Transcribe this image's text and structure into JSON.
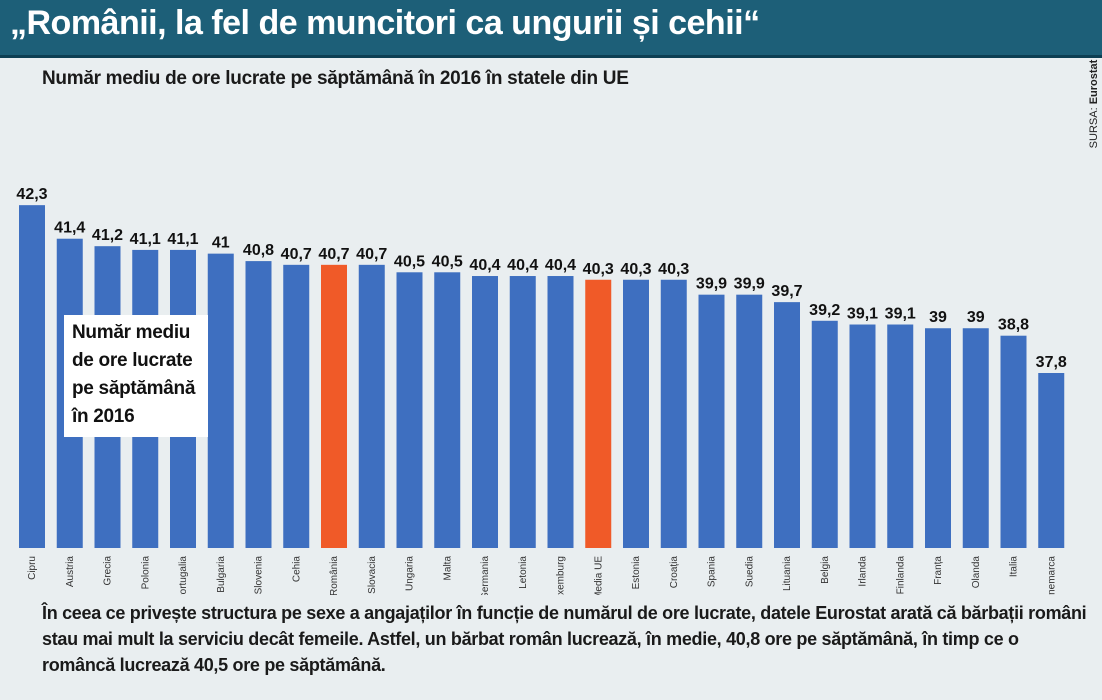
{
  "header": {
    "title": "„Românii, la fel de muncitori ca ungurii și cehii“"
  },
  "subtitle": "Număr mediu de ore lucrate pe săptămână în 2016 în statele din UE",
  "source": {
    "label": "SURSA:",
    "name": "Eurostat"
  },
  "legend_box": {
    "text": "Număr mediu de ore lucrate pe săptămână în 2016"
  },
  "footer": {
    "text": "În ceea ce privește structura pe sexe a angajaților în funcție de numărul de ore lucrate, datele Eurostat arată că bărbații români stau mai mult la serviciu decât femeile. Astfel, un bărbat român lucrează, în medie, 40,8 ore pe săptămână, în timp ce o româncă lucrează 40,5 ore pe săptămână."
  },
  "colors": {
    "bar": "#3e6fc0",
    "highlight": "#f05a28",
    "header_bg": "#1d5f78"
  },
  "chart_data": {
    "type": "bar",
    "title": "Număr mediu de ore lucrate pe săptămână în 2016 în statele din UE",
    "categories": [
      "Cipru",
      "Austria",
      "Grecia",
      "Polonia",
      "Portugalia",
      "Bulgaria",
      "Slovenia",
      "Cehia",
      "România",
      "Slovacia",
      "Ungaria",
      "Malta",
      "Germania",
      "Letonia",
      "Luxemburg",
      "Media UE",
      "Estonia",
      "Croația",
      "Spania",
      "Suedia",
      "Lituania",
      "Belgia",
      "Irlanda",
      "Finlanda",
      "Franța",
      "Olanda",
      "Italia",
      "Danemarca"
    ],
    "values": [
      42.3,
      41.4,
      41.2,
      41.1,
      41.1,
      41,
      40.8,
      40.7,
      40.7,
      40.7,
      40.5,
      40.5,
      40.4,
      40.4,
      40.4,
      40.3,
      40.3,
      40.3,
      39.9,
      39.9,
      39.7,
      39.2,
      39.1,
      39.1,
      39,
      39,
      38.8,
      37.8
    ],
    "value_labels": [
      "42,3",
      "41,4",
      "41,2",
      "41,1",
      "41,1",
      "41",
      "40,8",
      "40,7",
      "40,7",
      "40,7",
      "40,5",
      "40,5",
      "40,4",
      "40,4",
      "40,4",
      "40,3",
      "40,3",
      "40,3",
      "39,9",
      "39,9",
      "39,7",
      "39,2",
      "39,1",
      "39,1",
      "39",
      "39",
      "38,8",
      "37,8"
    ],
    "highlighted": [
      "România",
      "Media UE"
    ],
    "grid": false,
    "ylim": [
      30,
      42.3
    ]
  }
}
